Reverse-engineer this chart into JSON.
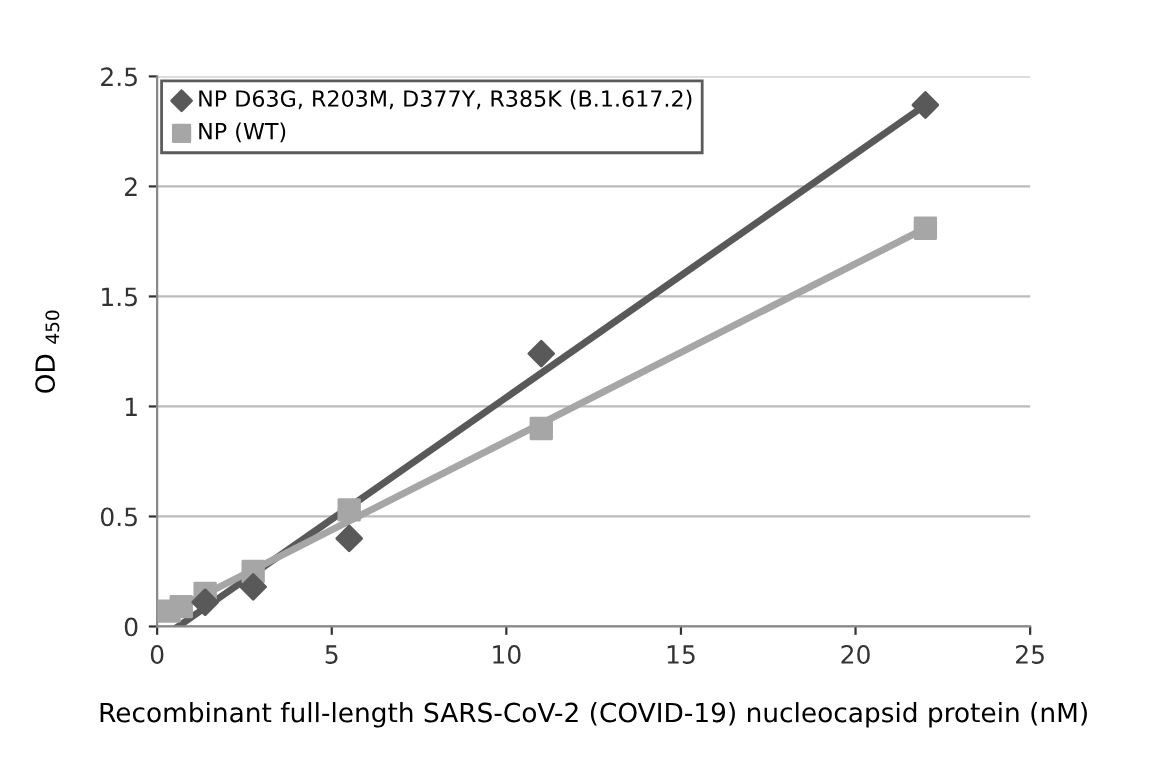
{
  "chart_data": {
    "type": "scatter",
    "xlabel": "Recombinant full-length SARS-CoV-2 (COVID-19) nucleocapsid protein (nM)",
    "ylabel": "OD $_{450}$",
    "xlim": [
      0,
      25
    ],
    "xticks": [
      0,
      5,
      10,
      15,
      20,
      25
    ],
    "ylim": [
      0,
      2.5
    ],
    "yticks": [
      0,
      0.5,
      1,
      1.5,
      2,
      2.5
    ],
    "grid": "y",
    "legend": "top left",
    "series": [
      {
        "type": "line",
        "color": "#595959",
        "x": [
          0.6,
          22
        ],
        "values": [
          0,
          2.37
        ],
        "marker": "none",
        "line_style": "solid"
      },
      {
        "type": "line",
        "color": "#a6a6a6",
        "x": [
          0.3,
          22
        ],
        "values": [
          0.06,
          1.81
        ],
        "marker": "none",
        "line_style": "solid"
      },
      {
        "name": "NP D63G, R203M, D377Y, R385K (B.1.617.2)",
        "color": "#595959",
        "marker": "diamond",
        "x": [
          1.375,
          2.75,
          5.5,
          11,
          22
        ],
        "values": [
          0.11,
          0.18,
          0.4,
          1.24,
          2.37
        ]
      },
      {
        "name": "NP (WT)",
        "color": "#a6a6a6",
        "marker": "square",
        "x": [
          0.34,
          0.69,
          1.375,
          2.75,
          5.5,
          11,
          22
        ],
        "values": [
          0.07,
          0.09,
          0.15,
          0.25,
          0.53,
          0.9,
          1.81
        ]
      }
    ]
  }
}
